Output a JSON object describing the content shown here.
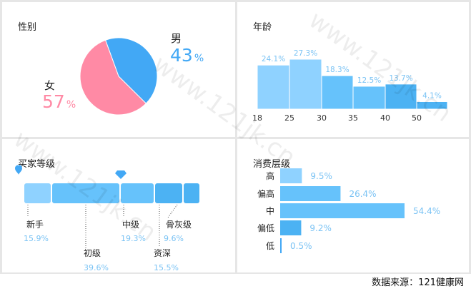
{
  "panels": {
    "gender": {
      "title": "性别"
    },
    "age": {
      "title": "年龄"
    },
    "buyer": {
      "title": "买家等级"
    },
    "consumption": {
      "title": "消费层级"
    }
  },
  "colors": {
    "male": "#42a8f5",
    "female": "#ff8aa5",
    "bar_light": "#8fd2ff",
    "bar_mid": "#66c2fb",
    "bar_dark": "#4cb2f3",
    "pct_text": "#7bc3f4"
  },
  "watermark": "www.121jk.cn",
  "source": "数据来源：121健康网",
  "chart_data": [
    {
      "type": "pie",
      "title": "性别",
      "slices": [
        {
          "name": "男",
          "value": 43,
          "value_label": "43",
          "unit": "%"
        },
        {
          "name": "女",
          "value": 57,
          "value_label": "57",
          "unit": "%"
        }
      ]
    },
    {
      "type": "bar",
      "title": "年龄",
      "tick_labels": [
        "18",
        "25",
        "30",
        "35",
        "40",
        "50"
      ],
      "bins": [
        {
          "from": "18",
          "to": "25",
          "value": 24.1,
          "label": "24.1%"
        },
        {
          "from": "25",
          "to": "30",
          "value": 27.3,
          "label": "27.3%"
        },
        {
          "from": "30",
          "to": "35",
          "value": 18.3,
          "label": "18.3%"
        },
        {
          "from": "35",
          "to": "40",
          "value": 12.5,
          "label": "12.5%"
        },
        {
          "from": "40",
          "to": "50",
          "value": 13.7,
          "label": "13.7%"
        },
        {
          "from": "50",
          "to": "",
          "value": 4.1,
          "label": "4.1%"
        }
      ]
    },
    {
      "type": "bar",
      "title": "买家等级",
      "levels": [
        {
          "name": "新手",
          "value": 15.9,
          "label": "15.9%"
        },
        {
          "name": "初级",
          "value": 39.6,
          "label": "39.6%"
        },
        {
          "name": "中级",
          "value": 19.3,
          "label": "19.3%"
        },
        {
          "name": "资深",
          "value": 15.5,
          "label": "15.5%"
        },
        {
          "name": "骨灰级",
          "value": 9.6,
          "label": "9.6%"
        }
      ]
    },
    {
      "type": "bar",
      "orientation": "horizontal",
      "title": "消费层级",
      "categories": [
        "高",
        "偏高",
        "中",
        "偏低",
        "低"
      ],
      "values": [
        9.5,
        26.4,
        54.4,
        9.2,
        0.5
      ],
      "labels": [
        "9.5%",
        "26.4%",
        "54.4%",
        "9.2%",
        "0.5%"
      ]
    }
  ]
}
